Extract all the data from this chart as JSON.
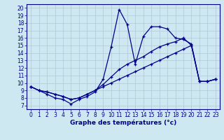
{
  "title": "Graphe des températures (°c)",
  "bg_color": "#cde8f0",
  "line_color": "#00008b",
  "grid_color": "#b0c8d8",
  "xlim": [
    -0.5,
    23.5
  ],
  "ylim": [
    6.5,
    20.5
  ],
  "xticks": [
    0,
    1,
    2,
    3,
    4,
    5,
    6,
    7,
    8,
    9,
    10,
    11,
    12,
    13,
    14,
    15,
    16,
    17,
    18,
    19,
    20,
    21,
    22,
    23
  ],
  "yticks": [
    7,
    8,
    9,
    10,
    11,
    12,
    13,
    14,
    15,
    16,
    17,
    18,
    19,
    20
  ],
  "series": [
    {
      "x": [
        0,
        1,
        2,
        3,
        4,
        5,
        6,
        7,
        8,
        9,
        10,
        11,
        12,
        13,
        14,
        15,
        16,
        17,
        18,
        19,
        20,
        21,
        22,
        23
      ],
      "y": [
        9.5,
        9.0,
        8.5,
        8.0,
        7.8,
        7.2,
        7.8,
        8.2,
        8.8,
        10.5,
        14.8,
        19.8,
        17.8,
        12.5,
        16.2,
        17.5,
        17.5,
        17.2,
        16.0,
        15.8,
        15.2,
        10.2,
        10.2,
        10.5
      ]
    },
    {
      "x": [
        0,
        1,
        2,
        3,
        4,
        5,
        6,
        7,
        8,
        9,
        10,
        11,
        12,
        13,
        14,
        15,
        16,
        17,
        18,
        19,
        20,
        21,
        22,
        23
      ],
      "y": [
        9.5,
        9.0,
        8.8,
        8.5,
        8.2,
        7.8,
        8.0,
        8.5,
        9.0,
        9.8,
        10.8,
        11.8,
        12.5,
        13.0,
        13.5,
        14.2,
        14.8,
        15.2,
        15.5,
        16.0,
        15.0,
        10.2,
        10.2,
        10.5
      ]
    },
    {
      "x": [
        0,
        1,
        2,
        3,
        4,
        5,
        6,
        7,
        8,
        9,
        10,
        11,
        12,
        13,
        14,
        15,
        16,
        17,
        18,
        19,
        20,
        21,
        22,
        23
      ],
      "y": [
        9.5,
        9.0,
        8.8,
        8.5,
        8.2,
        7.8,
        8.0,
        8.5,
        9.0,
        9.5,
        10.0,
        10.5,
        11.0,
        11.5,
        12.0,
        12.5,
        13.0,
        13.5,
        14.0,
        14.5,
        15.0,
        10.2,
        10.2,
        10.5
      ]
    }
  ],
  "xlabel_fontsize": 6.5,
  "tick_fontsize": 5.5
}
